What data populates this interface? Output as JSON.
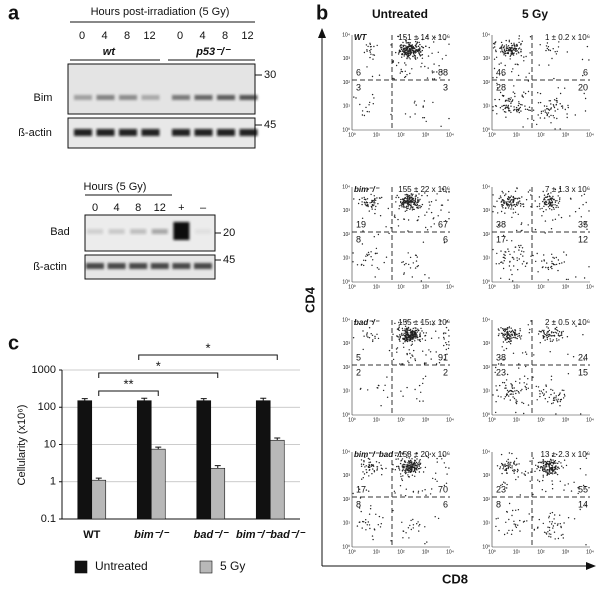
{
  "panel_a": {
    "label": "a",
    "top": {
      "header": "Hours post-irradiation (5 Gy)",
      "hours": [
        0,
        4,
        8,
        12
      ],
      "genotypes": [
        "wt",
        "p53⁻/⁻"
      ],
      "rows": [
        "Bim",
        "ß-actin"
      ],
      "markers": [
        30,
        45
      ]
    },
    "bottom": {
      "header": "Hours (5 Gy)",
      "lanes": [
        "0",
        "4",
        "8",
        "12",
        "+",
        "–"
      ],
      "rows": [
        "Bad",
        "ß-actin"
      ],
      "markers": [
        20,
        45
      ]
    }
  },
  "panel_b": {
    "label": "b",
    "columns": [
      "Untreated",
      "5 Gy"
    ],
    "y_axis": "CD4",
    "x_axis": "CD8",
    "axis_ticks": [
      "10⁰",
      "10¹",
      "10²",
      "10³",
      "10⁴"
    ],
    "rows": [
      {
        "genotype": "WT",
        "untreated": {
          "count": "151 ± 14 x 10⁶",
          "quadrants": [
            6,
            88,
            3,
            3
          ]
        },
        "irradiated": {
          "count": "1 ± 0.2 x 10⁶",
          "quadrants": [
            46,
            6,
            28,
            20
          ]
        }
      },
      {
        "genotype": "bim⁻/⁻",
        "untreated": {
          "count": "155 ± 22 x 10⁶",
          "quadrants": [
            19,
            67,
            8,
            6
          ]
        },
        "irradiated": {
          "count": "7 ± 1.3 x 10⁶",
          "quadrants": [
            38,
            35,
            17,
            12
          ]
        }
      },
      {
        "genotype": "bad⁻/⁻",
        "untreated": {
          "count": "155 ± 15 x 10⁶",
          "quadrants": [
            5,
            91,
            2,
            2
          ]
        },
        "irradiated": {
          "count": "2 ± 0.5 x 10⁶",
          "quadrants": [
            38,
            24,
            23,
            15
          ]
        }
      },
      {
        "genotype": "bim⁻/⁻bad⁻/⁻",
        "untreated": {
          "count": "158 ± 20 x 10⁶",
          "quadrants": [
            17,
            70,
            8,
            6
          ]
        },
        "irradiated": {
          "count": "13 ± 2.3 x 10⁶",
          "quadrants": [
            23,
            55,
            8,
            14
          ]
        }
      }
    ]
  },
  "chart_data": {
    "type": "bar",
    "label": "c",
    "y_label": "Cellularity (x10⁶)",
    "categories": [
      "WT",
      "bim⁻/⁻",
      "bad⁻/⁻",
      "bim⁻/⁻bad⁻/⁻"
    ],
    "series": [
      {
        "name": "Untreated",
        "color": "#111111",
        "values": [
          150,
          150,
          150,
          150
        ],
        "errors": [
          20,
          25,
          20,
          25
        ]
      },
      {
        "name": "5 Gy",
        "color": "#b8b8b8",
        "values": [
          1.1,
          7.5,
          2.3,
          13
        ],
        "errors": [
          0.15,
          1,
          0.4,
          2
        ]
      }
    ],
    "ylim": [
      0.1,
      1000
    ],
    "yticks": [
      0.1,
      1,
      10,
      100,
      1000
    ],
    "log_scale": true,
    "grid": true,
    "annotations": [
      "**",
      "*",
      "*"
    ]
  }
}
